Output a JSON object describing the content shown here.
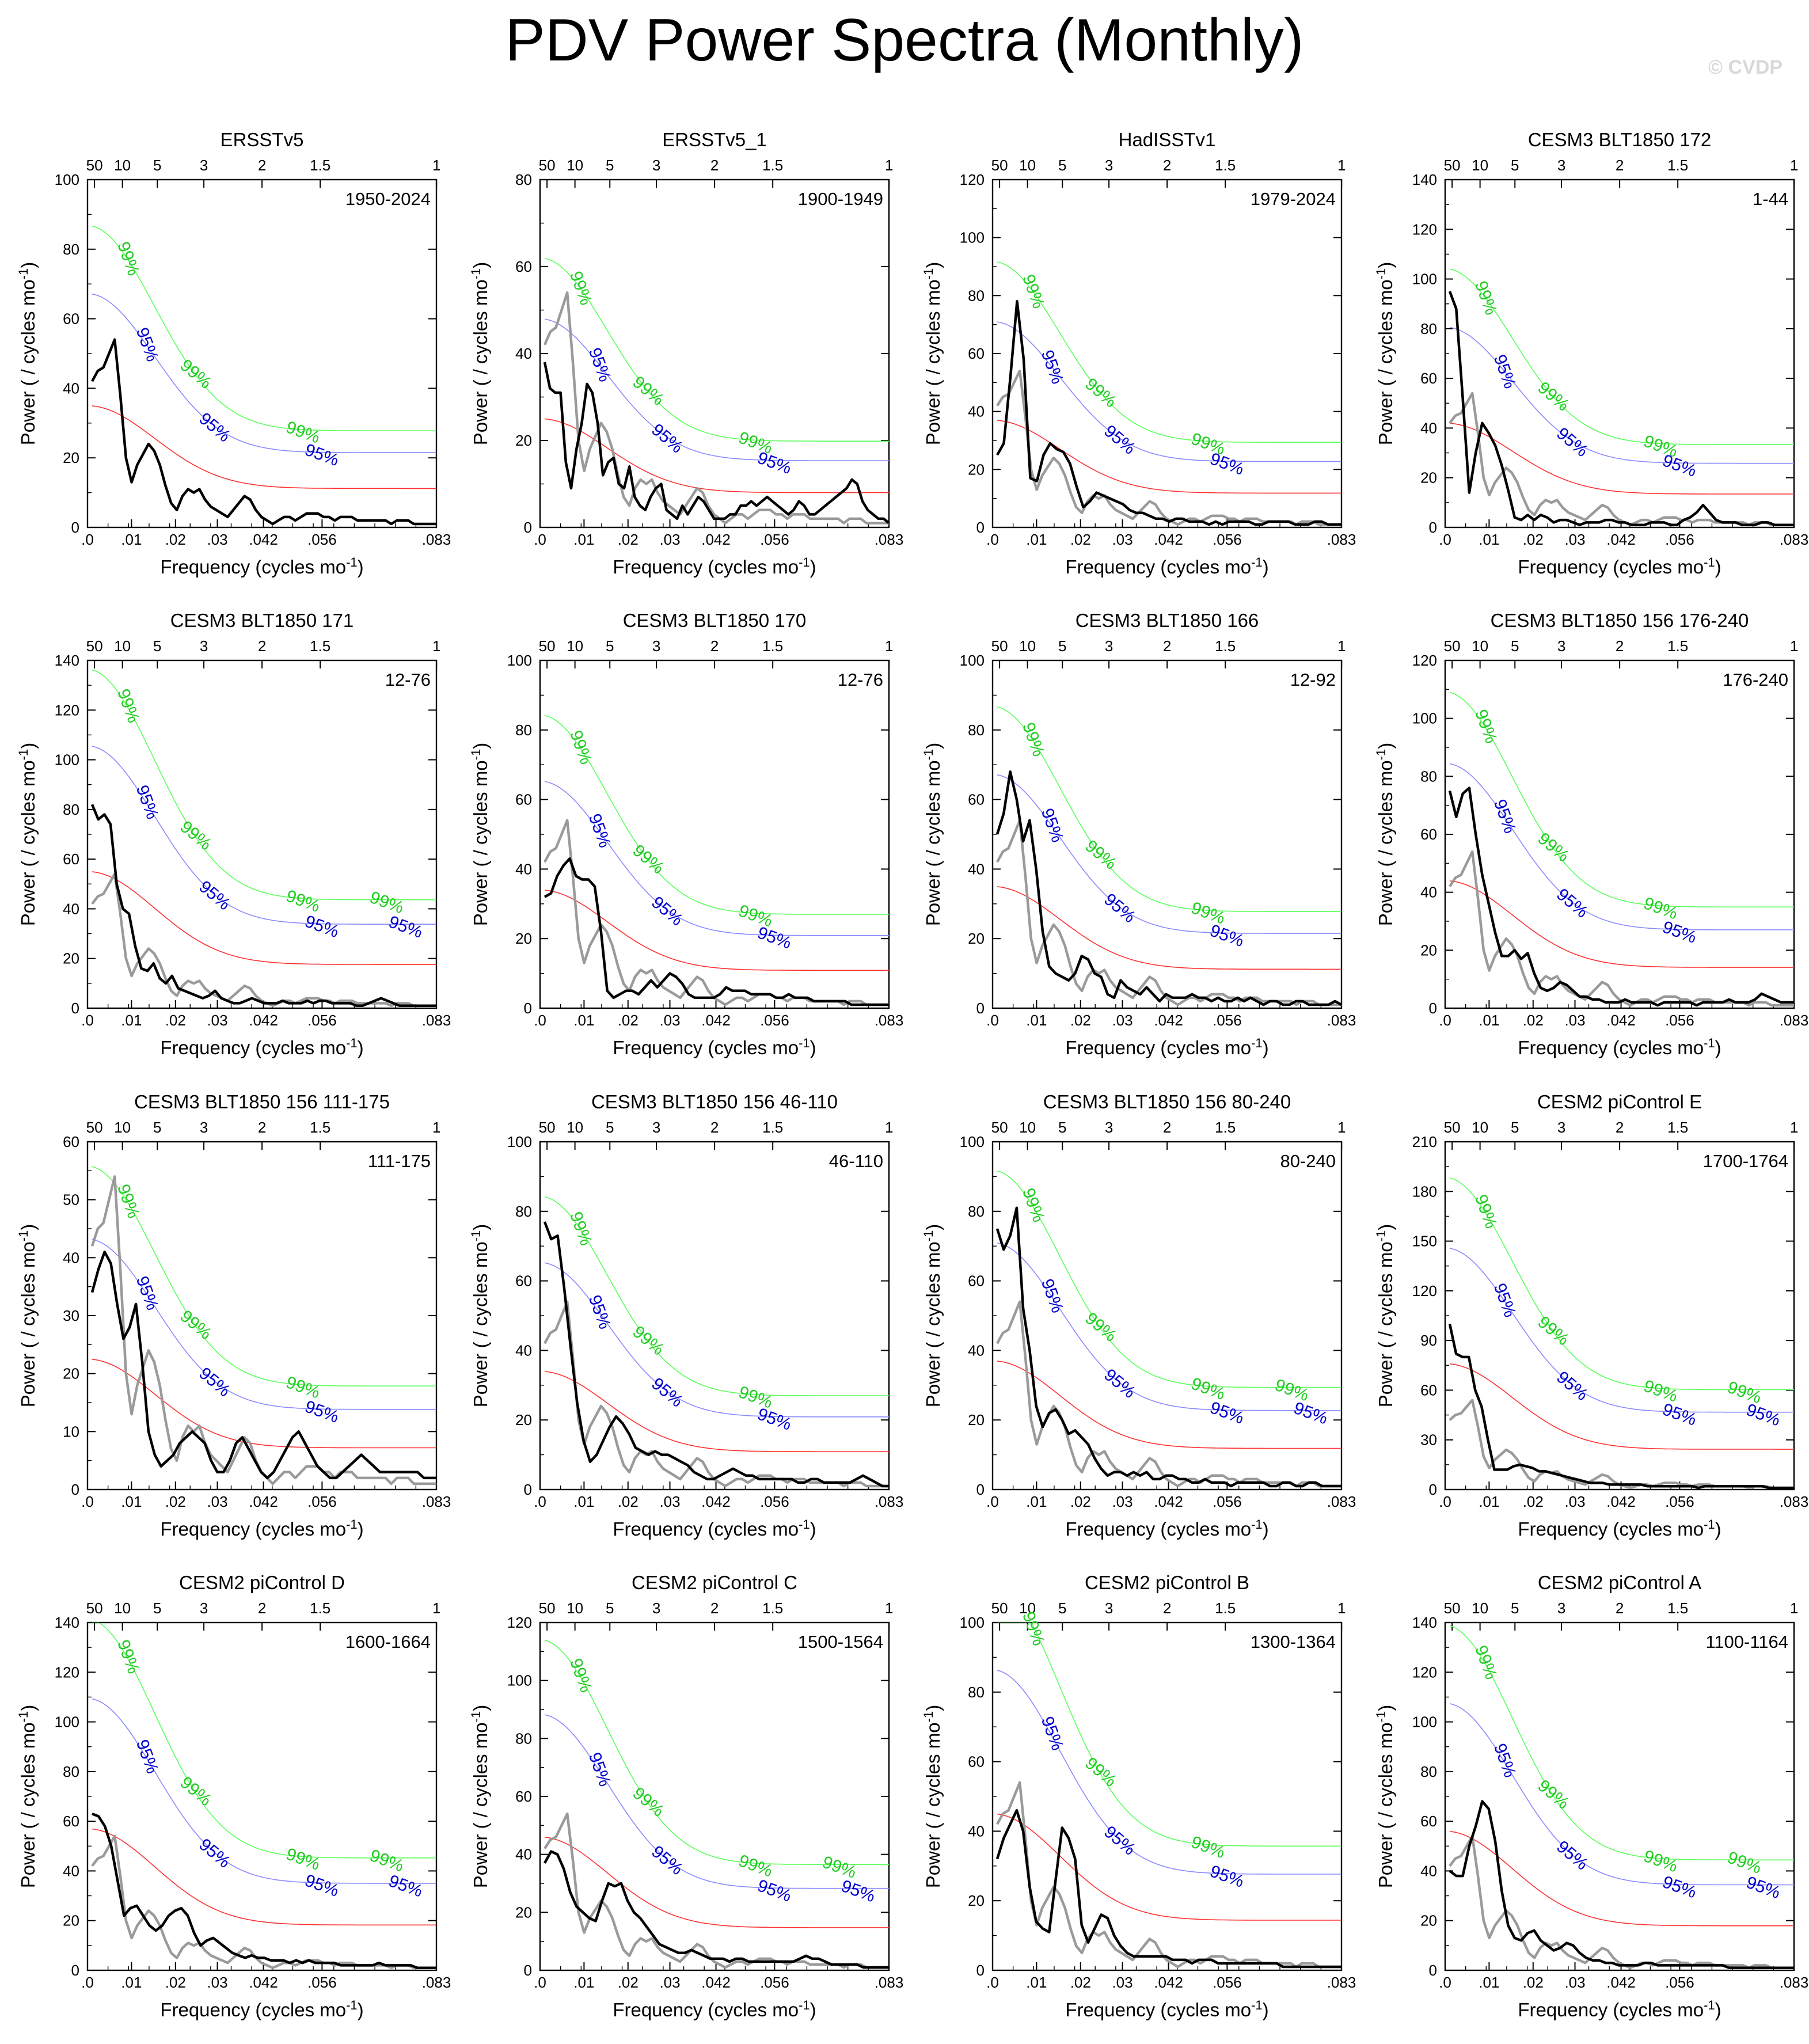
{
  "header": {
    "title": "PDV Power Spectra (Monthly)",
    "watermark": "© CVDP"
  },
  "colors": {
    "spectrum": "#000000",
    "obs_reference": "#9a9a9a",
    "red_noise": "#ff3030",
    "conf95": "#8a8aff",
    "conf99": "#5aff5a",
    "label95": "#0000cc",
    "label99": "#22cc22"
  },
  "chart_data": [
    {
      "title": "ERSSTv5",
      "period": "1950-2024",
      "ylim": [
        0,
        100
      ],
      "yticks": [
        0,
        20,
        40,
        60,
        80,
        100
      ],
      "red_noise_at_zero": 35,
      "label_pairs": 3,
      "ref": false,
      "values": [
        42,
        45,
        46,
        50,
        54,
        38,
        20,
        13,
        18,
        21,
        24,
        22,
        18,
        12,
        7,
        5,
        9,
        11,
        10,
        11,
        8,
        6,
        5,
        4,
        3,
        5,
        7,
        9,
        8,
        5,
        3,
        2,
        1,
        2,
        3,
        3,
        2,
        3,
        4,
        4,
        4,
        3,
        3,
        2,
        3,
        3,
        3,
        2,
        2,
        2,
        2,
        2,
        2,
        1,
        2,
        2,
        2,
        1,
        1,
        1,
        1,
        1
      ]
    },
    {
      "title": "ERSSTv5_1",
      "period": "1900-1949",
      "ylim": [
        0,
        80
      ],
      "yticks": [
        0,
        20,
        40,
        60,
        80
      ],
      "red_noise_at_zero": 25,
      "label_pairs": 3,
      "ref": true,
      "values": [
        38,
        32,
        31,
        31,
        15,
        9,
        18,
        24,
        33,
        31,
        24,
        12,
        15,
        16,
        10,
        9,
        14,
        7,
        5,
        4,
        7,
        9,
        10,
        4,
        3,
        2,
        5,
        3,
        5,
        7,
        6,
        4,
        2,
        2,
        2,
        3,
        3,
        5,
        5,
        6,
        5,
        6,
        7,
        6,
        5,
        4,
        3,
        4,
        6,
        5,
        3,
        3,
        4,
        5,
        6,
        7,
        8,
        9,
        11,
        10,
        6,
        4,
        3,
        2,
        2,
        1
      ]
    },
    {
      "title": "HadISSTv1",
      "period": "1979-2024",
      "ylim": [
        0,
        120
      ],
      "yticks": [
        0,
        20,
        40,
        60,
        80,
        100,
        120
      ],
      "red_noise_at_zero": 37,
      "label_pairs": 3,
      "ref": true,
      "values": [
        25,
        29,
        52,
        78,
        58,
        17,
        16,
        25,
        29,
        27,
        26,
        22,
        14,
        7,
        9,
        12,
        11,
        10,
        9,
        8,
        6,
        5,
        5,
        4,
        3,
        3,
        2,
        3,
        3,
        2,
        2,
        2,
        1,
        2,
        1,
        2,
        2,
        2,
        2,
        1,
        1,
        2,
        2,
        2,
        2,
        1,
        1,
        1,
        2,
        2,
        1,
        1,
        1
      ]
    },
    {
      "title": "CESM3 BLT1850 172",
      "period": "1-44",
      "ylim": [
        0,
        140
      ],
      "yticks": [
        0,
        20,
        40,
        60,
        80,
        100,
        120,
        140
      ],
      "red_noise_at_zero": 42,
      "label_pairs": 3,
      "ref": true,
      "values": [
        95,
        88,
        52,
        14,
        30,
        42,
        38,
        33,
        25,
        15,
        4,
        3,
        5,
        3,
        5,
        4,
        2,
        3,
        3,
        2,
        1,
        2,
        2,
        2,
        3,
        3,
        2,
        2,
        1,
        1,
        1,
        2,
        2,
        2,
        1,
        1,
        3,
        4,
        6,
        9,
        6,
        3,
        2,
        2,
        2,
        1,
        1,
        1,
        2,
        2,
        1,
        1,
        1,
        1
      ]
    },
    {
      "title": "CESM3 BLT1850 171",
      "period": "12-76",
      "ylim": [
        0,
        140
      ],
      "yticks": [
        0,
        20,
        40,
        60,
        80,
        100,
        120,
        140
      ],
      "red_noise_at_zero": 55,
      "label_pairs": 4,
      "ref": true,
      "values": [
        82,
        76,
        78,
        74,
        50,
        40,
        38,
        25,
        16,
        15,
        18,
        12,
        10,
        13,
        8,
        7,
        6,
        5,
        4,
        5,
        7,
        4,
        3,
        2,
        2,
        3,
        4,
        3,
        2,
        2,
        2,
        3,
        2,
        2,
        2,
        3,
        2,
        3,
        3,
        2,
        2,
        2,
        2,
        1,
        1,
        2,
        3,
        4,
        3,
        2,
        1,
        1,
        1,
        1,
        1,
        1,
        1
      ]
    },
    {
      "title": "CESM3 BLT1850 170",
      "period": "12-76",
      "ylim": [
        0,
        100
      ],
      "yticks": [
        0,
        20,
        40,
        60,
        80,
        100
      ],
      "red_noise_at_zero": 34,
      "label_pairs": 3,
      "ref": true,
      "values": [
        32,
        33,
        38,
        41,
        43,
        38,
        37,
        37,
        35,
        22,
        5,
        3,
        4,
        5,
        5,
        4,
        6,
        8,
        6,
        8,
        10,
        9,
        7,
        4,
        3,
        3,
        3,
        3,
        4,
        6,
        5,
        5,
        5,
        4,
        4,
        4,
        4,
        3,
        3,
        4,
        3,
        3,
        3,
        2,
        2,
        2,
        2,
        2,
        2,
        1,
        1,
        1,
        1,
        1,
        1,
        1
      ]
    },
    {
      "title": "CESM3 BLT1850 166",
      "period": "12-92",
      "ylim": [
        0,
        100
      ],
      "yticks": [
        0,
        20,
        40,
        60,
        80,
        100
      ],
      "red_noise_at_zero": 35,
      "label_pairs": 3,
      "ref": true,
      "values": [
        50,
        56,
        68,
        60,
        48,
        54,
        40,
        22,
        12,
        10,
        9,
        8,
        10,
        15,
        14,
        10,
        9,
        4,
        3,
        8,
        6,
        5,
        4,
        6,
        4,
        2,
        4,
        3,
        3,
        3,
        4,
        3,
        3,
        2,
        3,
        2,
        2,
        3,
        2,
        3,
        2,
        1,
        2,
        2,
        1,
        1,
        2,
        2,
        1,
        1,
        1,
        1,
        2,
        1
      ]
    },
    {
      "title": "CESM3 BLT1850 156 176-240",
      "period": "176-240",
      "ylim": [
        0,
        120
      ],
      "yticks": [
        0,
        20,
        40,
        60,
        80,
        100,
        120
      ],
      "red_noise_at_zero": 44,
      "label_pairs": 3,
      "ref": true,
      "values": [
        75,
        66,
        74,
        76,
        60,
        46,
        36,
        26,
        18,
        18,
        20,
        17,
        19,
        12,
        7,
        6,
        7,
        9,
        8,
        6,
        4,
        4,
        3,
        3,
        2,
        2,
        2,
        3,
        2,
        2,
        2,
        2,
        1,
        2,
        2,
        2,
        2,
        2,
        1,
        2,
        2,
        2,
        2,
        3,
        2,
        2,
        2,
        3,
        5,
        4,
        3,
        2,
        2,
        2
      ]
    },
    {
      "title": "CESM3 BLT1850 156 111-175",
      "period": "111-175",
      "ylim": [
        0,
        60
      ],
      "yticks": [
        0,
        10,
        20,
        30,
        40,
        50,
        60
      ],
      "red_noise_at_zero": 22.5,
      "label_pairs": 3,
      "ref": true,
      "values": [
        34,
        38,
        41,
        39,
        32,
        26,
        28,
        32,
        22,
        10,
        6,
        4,
        5,
        6,
        8,
        9,
        10,
        9,
        8,
        5,
        3,
        3,
        5,
        8,
        9,
        7,
        5,
        3,
        2,
        3,
        5,
        7,
        9,
        10,
        8,
        6,
        4,
        3,
        2,
        2,
        3,
        4,
        5,
        6,
        5,
        4,
        3,
        3,
        3,
        3,
        3,
        3,
        3,
        2,
        2,
        2
      ]
    },
    {
      "title": "CESM3 BLT1850 156 46-110",
      "period": "46-110",
      "ylim": [
        0,
        100
      ],
      "yticks": [
        0,
        20,
        40,
        60,
        80,
        100
      ],
      "red_noise_at_zero": 34,
      "label_pairs": 3,
      "ref": true,
      "values": [
        77,
        72,
        73,
        58,
        41,
        25,
        14,
        8,
        10,
        14,
        18,
        21,
        19,
        16,
        12,
        11,
        10,
        11,
        10,
        10,
        9,
        8,
        7,
        5,
        4,
        3,
        3,
        4,
        5,
        6,
        5,
        4,
        4,
        3,
        3,
        3,
        3,
        3,
        3,
        2,
        2,
        3,
        3,
        2,
        2,
        2,
        2,
        2,
        3,
        4,
        3,
        2,
        1,
        1
      ]
    },
    {
      "title": "CESM3 BLT1850 156 80-240",
      "period": "80-240",
      "ylim": [
        0,
        100
      ],
      "yticks": [
        0,
        20,
        40,
        60,
        80,
        100
      ],
      "red_noise_at_zero": 37,
      "label_pairs": 4,
      "ref": true,
      "values": [
        75,
        69,
        73,
        81,
        52,
        40,
        24,
        18,
        22,
        23,
        20,
        16,
        17,
        15,
        13,
        9,
        6,
        4,
        5,
        5,
        4,
        5,
        4,
        5,
        3,
        3,
        4,
        4,
        3,
        3,
        2,
        2,
        3,
        2,
        2,
        2,
        1,
        2,
        2,
        2,
        2,
        2,
        1,
        1,
        2,
        2,
        1,
        1,
        2,
        2,
        1,
        1,
        1,
        1
      ]
    },
    {
      "title": "CESM2 piControl E",
      "period": "1700-1764",
      "ylim": [
        0,
        210
      ],
      "yticks": [
        0,
        30,
        60,
        90,
        120,
        150,
        180,
        210
      ],
      "red_noise_at_zero": 76,
      "label_pairs": 4,
      "ref": true,
      "values": [
        100,
        82,
        80,
        80,
        60,
        50,
        30,
        12,
        12,
        12,
        14,
        15,
        14,
        13,
        11,
        11,
        10,
        9,
        8,
        7,
        6,
        5,
        4,
        4,
        4,
        3,
        3,
        3,
        3,
        3,
        3,
        2,
        2,
        2,
        2,
        2,
        2,
        2,
        2,
        1,
        2,
        2,
        2,
        2,
        2,
        2,
        2,
        2,
        2,
        2,
        1,
        1,
        1,
        1,
        1
      ]
    },
    {
      "title": "CESM2 piControl D",
      "period": "1600-1664",
      "ylim": [
        0,
        140
      ],
      "yticks": [
        0,
        20,
        40,
        60,
        80,
        100,
        120,
        140
      ],
      "red_noise_at_zero": 57,
      "label_pairs": 4,
      "ref": true,
      "values": [
        63,
        62,
        58,
        50,
        36,
        22,
        25,
        26,
        22,
        18,
        16,
        18,
        22,
        24,
        25,
        22,
        15,
        10,
        12,
        13,
        11,
        9,
        7,
        6,
        5,
        6,
        5,
        5,
        4,
        4,
        4,
        3,
        4,
        3,
        4,
        3,
        3,
        3,
        3,
        2,
        2,
        2,
        2,
        2,
        2,
        3,
        2,
        2,
        2,
        2,
        2,
        1,
        1,
        1,
        1
      ]
    },
    {
      "title": "CESM2 piControl C",
      "period": "1500-1564",
      "ylim": [
        0,
        120
      ],
      "yticks": [
        0,
        20,
        40,
        60,
        80,
        100,
        120
      ],
      "red_noise_at_zero": 46,
      "label_pairs": 4,
      "ref": true,
      "values": [
        37,
        41,
        40,
        35,
        27,
        22,
        20,
        18,
        17,
        24,
        30,
        29,
        30,
        24,
        20,
        18,
        15,
        12,
        9,
        8,
        7,
        6,
        6,
        7,
        6,
        5,
        4,
        4,
        4,
        3,
        4,
        4,
        3,
        3,
        3,
        3,
        3,
        3,
        3,
        3,
        4,
        5,
        4,
        4,
        3,
        2,
        2,
        2,
        2,
        2,
        1,
        1,
        1,
        1,
        1
      ]
    },
    {
      "title": "CESM2 piControl B",
      "period": "1300-1364",
      "ylim": [
        0,
        100
      ],
      "yticks": [
        0,
        20,
        40,
        60,
        80,
        100
      ],
      "red_noise_at_zero": 45,
      "label_pairs": 3,
      "ref": true,
      "values": [
        32,
        38,
        42,
        46,
        40,
        24,
        14,
        12,
        11,
        26,
        41,
        38,
        32,
        13,
        8,
        12,
        16,
        15,
        10,
        7,
        5,
        4,
        4,
        4,
        4,
        4,
        4,
        3,
        3,
        3,
        2,
        3,
        3,
        3,
        2,
        2,
        2,
        2,
        2,
        2,
        2,
        2,
        2,
        2,
        1,
        1,
        1,
        1,
        1,
        1,
        1,
        1,
        1,
        1
      ]
    },
    {
      "title": "CESM2 piControl A",
      "period": "1100-1164",
      "ylim": [
        0,
        140
      ],
      "yticks": [
        0,
        20,
        40,
        60,
        80,
        100,
        120,
        140
      ],
      "red_noise_at_zero": 56,
      "label_pairs": 4,
      "ref": true,
      "values": [
        40,
        38,
        38,
        50,
        58,
        68,
        65,
        52,
        32,
        18,
        13,
        12,
        15,
        16,
        12,
        10,
        8,
        9,
        11,
        10,
        7,
        5,
        4,
        4,
        3,
        3,
        2,
        2,
        2,
        2,
        3,
        3,
        2,
        2,
        2,
        2,
        2,
        2,
        2,
        2,
        2,
        2,
        2,
        1,
        1,
        1,
        1,
        1,
        1,
        1,
        1,
        1,
        1,
        1
      ]
    }
  ],
  "axes": {
    "xlabel": "Frequency (cycles mo",
    "xlabel_sup": "-1",
    "xlabel_end": ")",
    "ylabel": "Power ( / cycles mo",
    "ylabel_sup": "-1",
    "ylabel_end": ")",
    "xlim": [
      0,
      0.0833
    ],
    "bottom_ticks": [
      {
        "value": 0,
        "label": ".0"
      },
      {
        "value": 0.0105,
        "label": ".01"
      },
      {
        "value": 0.021,
        "label": ".02"
      },
      {
        "value": 0.031,
        "label": ".03"
      },
      {
        "value": 0.042,
        "label": ".042"
      },
      {
        "value": 0.056,
        "label": ".056"
      },
      {
        "value": 0.0833,
        "label": ".083"
      }
    ],
    "top_ticks_period_years": [
      {
        "value": 50,
        "label": "50"
      },
      {
        "value": 10,
        "label": "10"
      },
      {
        "value": 5,
        "label": "5"
      },
      {
        "value": 3,
        "label": "3"
      },
      {
        "value": 2,
        "label": "2"
      },
      {
        "value": 1.5,
        "label": "1.5"
      },
      {
        "value": 1,
        "label": "1"
      }
    ],
    "conf95_label": "95%",
    "conf99_label": "99%",
    "conf95_factor": 1.92,
    "conf99_factor": 2.48
  },
  "reference_obs_values": [
    42,
    45,
    46,
    50,
    54,
    38,
    20,
    13,
    18,
    21,
    24,
    22,
    18,
    12,
    7,
    5,
    9,
    11,
    10,
    11,
    8,
    6,
    5,
    4,
    3,
    5,
    7,
    9,
    8,
    5,
    3,
    2,
    1,
    2,
    3,
    3,
    2,
    3,
    4,
    4,
    4,
    3,
    3,
    2,
    3,
    3,
    3,
    2,
    2,
    2,
    2,
    2,
    2,
    1,
    2,
    2,
    2,
    1,
    1,
    1,
    1,
    1
  ]
}
